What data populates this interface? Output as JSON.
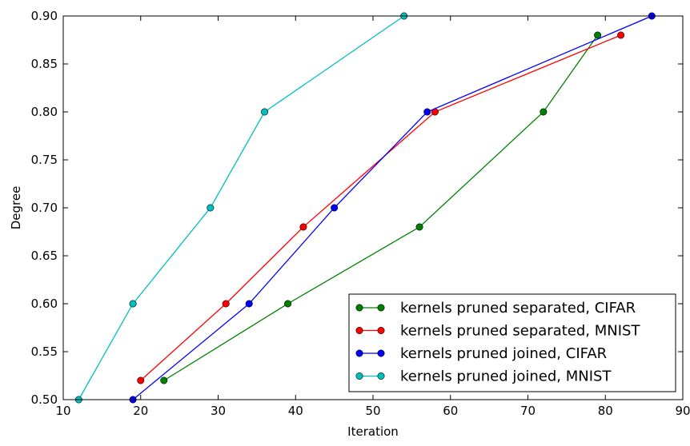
{
  "chart_data": {
    "type": "line",
    "title": "",
    "xlabel": "Iteration",
    "ylabel": "Degree",
    "xlim": [
      10,
      90
    ],
    "ylim": [
      0.5,
      0.9
    ],
    "x_ticks": [
      "10",
      "20",
      "30",
      "40",
      "50",
      "60",
      "70",
      "80",
      "90"
    ],
    "y_ticks": [
      "0.50",
      "0.55",
      "0.60",
      "0.65",
      "0.70",
      "0.75",
      "0.80",
      "0.85",
      "0.90"
    ],
    "grid": false,
    "legend_position": "lower-right",
    "series": [
      {
        "name": "kernels pruned separated, CIFAR",
        "color": "#008000",
        "marker": "circle",
        "points": [
          [
            23,
            0.52
          ],
          [
            39,
            0.6
          ],
          [
            56,
            0.68
          ],
          [
            72,
            0.8
          ],
          [
            79,
            0.88
          ]
        ]
      },
      {
        "name": "kernels pruned separated, MNIST",
        "color": "#ff0000",
        "marker": "circle",
        "points": [
          [
            20,
            0.52
          ],
          [
            31,
            0.6
          ],
          [
            41,
            0.68
          ],
          [
            58,
            0.8
          ],
          [
            82,
            0.88
          ]
        ]
      },
      {
        "name": "kernels pruned joined, CIFAR",
        "color": "#0000ff",
        "marker": "circle",
        "points": [
          [
            19,
            0.5
          ],
          [
            34,
            0.6
          ],
          [
            45,
            0.7
          ],
          [
            57,
            0.8
          ],
          [
            86,
            0.9
          ]
        ]
      },
      {
        "name": "kernels pruned joined, MNIST",
        "color": "#00bfbf",
        "marker": "circle",
        "points": [
          [
            12,
            0.5
          ],
          [
            19,
            0.6
          ],
          [
            29,
            0.7
          ],
          [
            36,
            0.8
          ],
          [
            54,
            0.9
          ]
        ]
      }
    ]
  }
}
